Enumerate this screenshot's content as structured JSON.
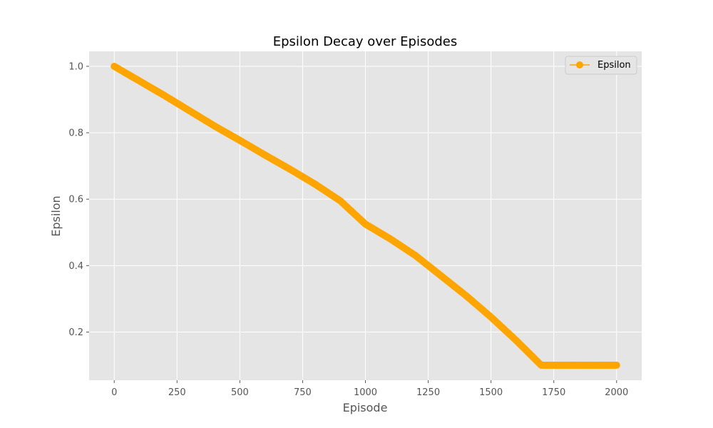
{
  "chart_data": {
    "type": "line",
    "title": "Epsilon Decay over Episodes",
    "xlabel": "Episode",
    "ylabel": "Epsilon",
    "xlim": [
      -100,
      2100
    ],
    "ylim": [
      0.055,
      1.045
    ],
    "xticks": [
      0,
      250,
      500,
      750,
      1000,
      1250,
      1500,
      1750,
      2000
    ],
    "yticks": [
      0.2,
      0.4,
      0.6,
      0.8,
      1.0
    ],
    "ytick_labels": [
      "0.2",
      "0.4",
      "0.6",
      "0.8",
      "1.0"
    ],
    "grid": true,
    "legend_position": "top-right",
    "series": [
      {
        "name": "Epsilon",
        "color": "#FFA500",
        "marker": "circle",
        "x": [
          0,
          100,
          200,
          300,
          400,
          500,
          600,
          700,
          800,
          900,
          1000,
          1100,
          1200,
          1300,
          1400,
          1500,
          1600,
          1700,
          1800,
          1900,
          2000
        ],
        "y": [
          1.0,
          0.956,
          0.912,
          0.866,
          0.82,
          0.777,
          0.733,
          0.69,
          0.645,
          0.595,
          0.525,
          0.48,
          0.43,
          0.37,
          0.31,
          0.245,
          0.175,
          0.1,
          0.1,
          0.1,
          0.1
        ]
      }
    ]
  }
}
